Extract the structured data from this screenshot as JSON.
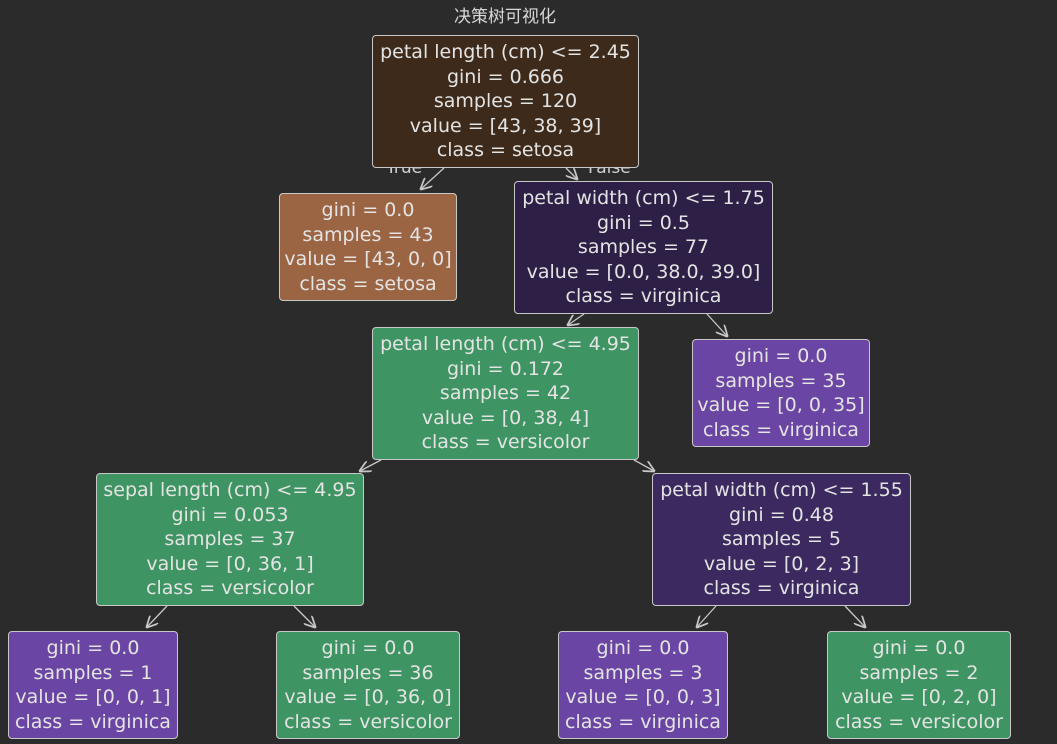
{
  "title": "决策树可视化",
  "edge_labels": {
    "true": "True",
    "false": "False"
  },
  "nodes": [
    {
      "id": "root",
      "lines": [
        "petal length (cm) <= 2.45",
        "gini = 0.666",
        "samples = 120",
        "value = [43, 38, 39]",
        "class = setosa"
      ],
      "fill": "#3d2a1a"
    },
    {
      "id": "setosa-leaf",
      "lines": [
        "gini = 0.0",
        "samples = 43",
        "value = [43, 0, 0]",
        "class = setosa"
      ],
      "fill": "#9b6442"
    },
    {
      "id": "petal-width-175",
      "lines": [
        "petal width (cm) <= 1.75",
        "gini = 0.5",
        "samples = 77",
        "value = [0.0, 38.0, 39.0]",
        "class = virginica"
      ],
      "fill": "#2d1f45"
    },
    {
      "id": "petal-length-495",
      "lines": [
        "petal length (cm) <= 4.95",
        "gini = 0.172",
        "samples = 42",
        "value = [0, 38, 4]",
        "class = versicolor"
      ],
      "fill": "#3f9463"
    },
    {
      "id": "virginica-leaf-35",
      "lines": [
        "gini = 0.0",
        "samples = 35",
        "value = [0, 0, 35]",
        "class = virginica"
      ],
      "fill": "#6a45a3"
    },
    {
      "id": "sepal-length-495",
      "lines": [
        "sepal length (cm) <= 4.95",
        "gini = 0.053",
        "samples = 37",
        "value = [0, 36, 1]",
        "class = versicolor"
      ],
      "fill": "#3f9463"
    },
    {
      "id": "petal-width-155",
      "lines": [
        "petal width (cm) <= 1.55",
        "gini = 0.48",
        "samples = 5",
        "value = [0, 2, 3]",
        "class = virginica"
      ],
      "fill": "#3b2960"
    },
    {
      "id": "virginica-leaf-1",
      "lines": [
        "gini = 0.0",
        "samples = 1",
        "value = [0, 0, 1]",
        "class = virginica"
      ],
      "fill": "#6a45a3"
    },
    {
      "id": "versicolor-leaf-36",
      "lines": [
        "gini = 0.0",
        "samples = 36",
        "value = [0, 36, 0]",
        "class = versicolor"
      ],
      "fill": "#3f9463"
    },
    {
      "id": "virginica-leaf-3",
      "lines": [
        "gini = 0.0",
        "samples = 3",
        "value = [0, 0, 3]",
        "class = virginica"
      ],
      "fill": "#6a45a3"
    },
    {
      "id": "versicolor-leaf-2",
      "lines": [
        "gini = 0.0",
        "samples = 2",
        "value = [0, 2, 0]",
        "class = versicolor"
      ],
      "fill": "#3f9463"
    }
  ]
}
